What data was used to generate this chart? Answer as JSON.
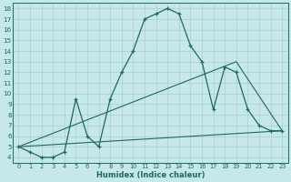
{
  "xlabel": "Humidex (Indice chaleur)",
  "bg_color": "#c6e8e8",
  "line_color": "#1a6b5a",
  "grid_color": "#aacece",
  "xlim": [
    -0.5,
    23.5
  ],
  "ylim": [
    3.5,
    18.5
  ],
  "curve1_x": [
    0,
    1,
    2,
    3,
    4,
    5,
    6,
    7,
    8,
    9,
    10,
    11,
    12,
    13,
    14,
    15,
    16,
    17,
    18,
    19,
    20,
    21,
    22,
    23
  ],
  "curve1_y": [
    5.0,
    4.5,
    4.0,
    4.0,
    4.5,
    9.5,
    6.0,
    5.0,
    9.5,
    12.0,
    14.0,
    17.0,
    17.5,
    18.0,
    17.5,
    14.5,
    13.0,
    8.5,
    12.5,
    12.0,
    8.5,
    7.0,
    6.5,
    6.5
  ],
  "curve2_x": [
    0,
    23
  ],
  "curve2_y": [
    5.0,
    6.5
  ],
  "curve3_x": [
    0,
    19,
    23
  ],
  "curve3_y": [
    5.0,
    13.0,
    6.5
  ]
}
